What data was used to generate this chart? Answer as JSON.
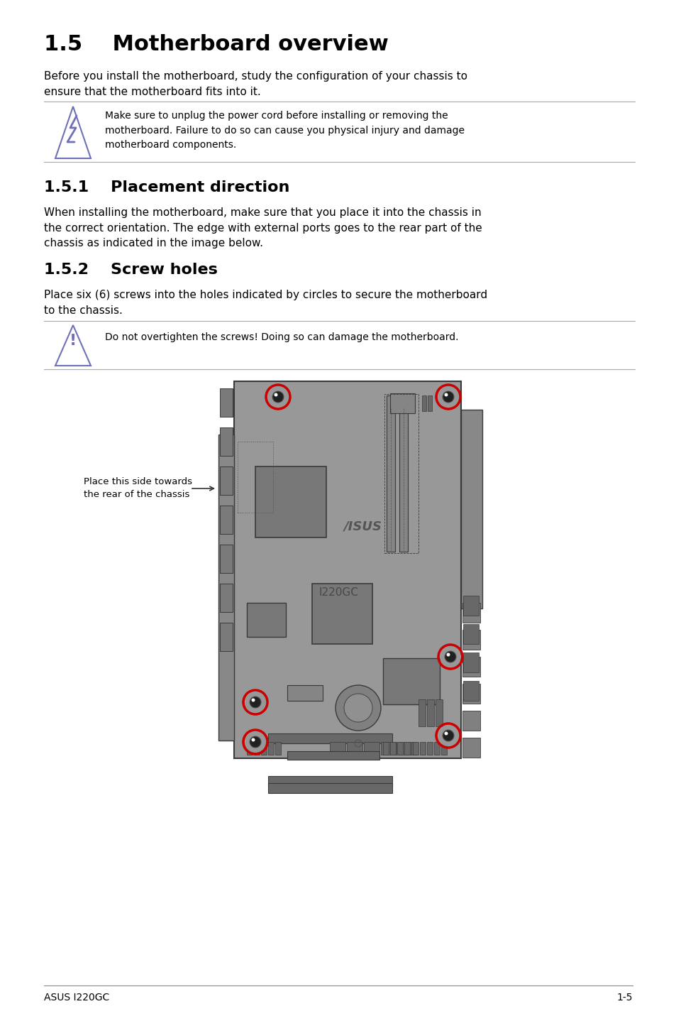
{
  "title": "1.5    Motherboard overview",
  "intro_text": "Before you install the motherboard, study the configuration of your chassis to\nensure that the motherboard fits into it.",
  "warning1_text": "Make sure to unplug the power cord before installing or removing the\nmotherboard. Failure to do so can cause you physical injury and damage\nmotherboard components.",
  "section151": "1.5.1    Placement direction",
  "section151_text": "When installing the motherboard, make sure that you place it into the chassis in\nthe correct orientation. The edge with external ports goes to the rear part of the\nchassis as indicated in the image below.",
  "section152": "1.5.2    Screw holes",
  "section152_text": "Place six (6) screws into the holes indicated by circles to secure the motherboard\nto the chassis.",
  "warning2_text": "Do not overtighten the screws! Doing so can damage the motherboard.",
  "annotation_text": "Place this side towards\nthe rear of the chassis",
  "footer_left": "ASUS I220GC",
  "footer_right": "1-5",
  "bg_color": "#ffffff",
  "text_color": "#000000",
  "board_fill": "#989898",
  "board_edge": "#3a3a3a",
  "comp_dark": "#707070",
  "comp_mid": "#808080",
  "screw_red": "#cc0000",
  "icon_blue": "#7070b8"
}
